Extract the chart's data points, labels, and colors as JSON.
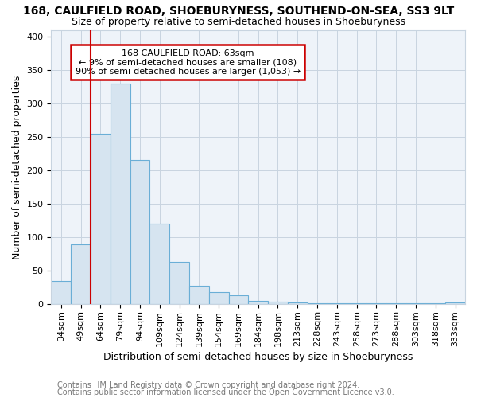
{
  "title": "168, CAULFIELD ROAD, SHOEBURYNESS, SOUTHEND-ON-SEA, SS3 9LT",
  "subtitle": "Size of property relative to semi-detached houses in Shoeburyness",
  "xlabel": "Distribution of semi-detached houses by size in Shoeburyness",
  "ylabel": "Number of semi-detached properties",
  "footnote1": "Contains HM Land Registry data © Crown copyright and database right 2024.",
  "footnote2": "Contains public sector information licensed under the Open Government Licence v3.0.",
  "categories": [
    "34sqm",
    "49sqm",
    "64sqm",
    "79sqm",
    "94sqm",
    "109sqm",
    "124sqm",
    "139sqm",
    "154sqm",
    "169sqm",
    "184sqm",
    "198sqm",
    "213sqm",
    "228sqm",
    "243sqm",
    "258sqm",
    "273sqm",
    "288sqm",
    "303sqm",
    "318sqm",
    "333sqm"
  ],
  "values": [
    35,
    90,
    255,
    330,
    215,
    120,
    63,
    28,
    18,
    13,
    5,
    4,
    3,
    2,
    2,
    2,
    2,
    2,
    2,
    2,
    3
  ],
  "bar_color": "#d6e4f0",
  "bar_edge_color": "#6aaed6",
  "vline_color": "#cc0000",
  "vline_position": 1.5,
  "annotation_text": "168 CAULFIELD ROAD: 63sqm\n← 9% of semi-detached houses are smaller (108)\n90% of semi-detached houses are larger (1,053) →",
  "box_color": "#cc0000",
  "ylim": [
    0,
    410
  ],
  "yticks": [
    0,
    50,
    100,
    150,
    200,
    250,
    300,
    350,
    400
  ],
  "background_color": "#ffffff",
  "plot_bg_color": "#eef3f9",
  "grid_color": "#c8d4e0",
  "title_fontsize": 10,
  "subtitle_fontsize": 9,
  "axis_label_fontsize": 9,
  "tick_fontsize": 8,
  "footnote_fontsize": 7
}
